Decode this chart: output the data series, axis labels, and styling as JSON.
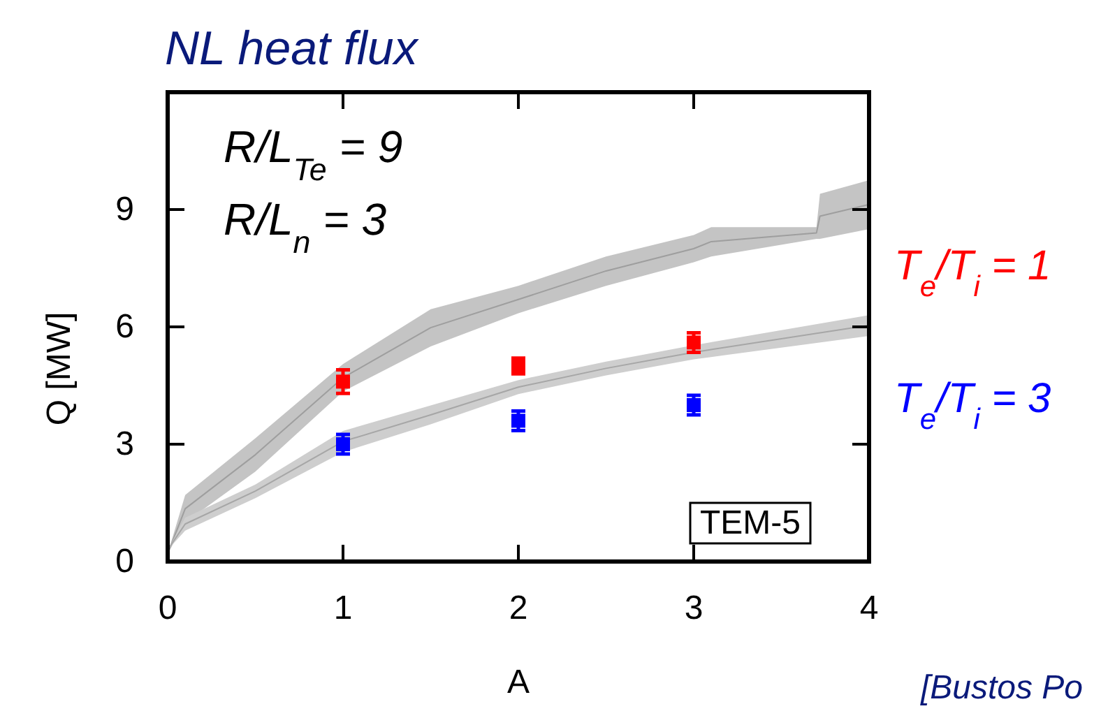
{
  "chart_data": {
    "type": "scatter",
    "title": "NL heat flux",
    "xlabel": "A",
    "ylabel": "Q [MW]",
    "xlim": [
      0,
      4
    ],
    "xticks": [
      0,
      1,
      2,
      3,
      4
    ],
    "ylim": [
      0,
      12
    ],
    "yticks": [
      0,
      3,
      6,
      9
    ],
    "legend": "right",
    "grid": false,
    "series": [
      {
        "type": "line",
        "color": "#9e9e9e",
        "x": [
          0,
          0.1,
          0.5,
          1,
          1.5,
          2,
          2.5,
          3,
          3.1,
          3.7,
          3.72,
          4
        ],
        "values": [
          0.2,
          1.35,
          2.73,
          4.7,
          5.98,
          6.7,
          7.43,
          8.0,
          8.18,
          8.4,
          8.83,
          9.13
        ],
        "upper": [
          0.2,
          1.7,
          3.15,
          5.05,
          6.45,
          7.05,
          7.8,
          8.35,
          8.55,
          8.55,
          9.4,
          9.75
        ],
        "lower": [
          0.2,
          1.0,
          2.3,
          4.35,
          5.5,
          6.35,
          7.05,
          7.65,
          7.8,
          8.25,
          8.25,
          8.5
        ]
      },
      {
        "type": "line",
        "color": "#a6a6a6",
        "x": [
          0,
          0.1,
          0.5,
          1,
          1.5,
          2,
          2.5,
          3,
          4
        ],
        "values": [
          0.3,
          0.96,
          1.8,
          3.07,
          3.75,
          4.46,
          4.94,
          5.35,
          6.04
        ],
        "upper": [
          0.3,
          1.12,
          1.97,
          3.34,
          3.99,
          4.64,
          5.11,
          5.53,
          6.3
        ],
        "lower": [
          0.3,
          0.79,
          1.62,
          2.8,
          3.51,
          4.28,
          4.76,
          5.17,
          5.77
        ]
      },
      {
        "name": "T$_{e}$/T$_{i}$ = 1",
        "color": "#ff0000",
        "marker": "square",
        "x": [
          1,
          2,
          3
        ],
        "values": [
          4.6,
          5.0,
          5.6
        ],
        "errors": [
          0.3,
          0.2,
          0.25
        ]
      },
      {
        "name": "T$_{e}$/T$_{i}$ = 3",
        "color": "#0000ff",
        "marker": "square",
        "x": [
          1,
          2,
          3
        ],
        "values": [
          3.0,
          3.6,
          4.0
        ],
        "errors": [
          0.25,
          0.25,
          0.25
        ]
      }
    ],
    "annotations": [
      "R/L$_{Te}$ = 9",
      "R/L$_{n}$ = 3",
      "TEM-5",
      "[Bustos Po"
    ]
  }
}
